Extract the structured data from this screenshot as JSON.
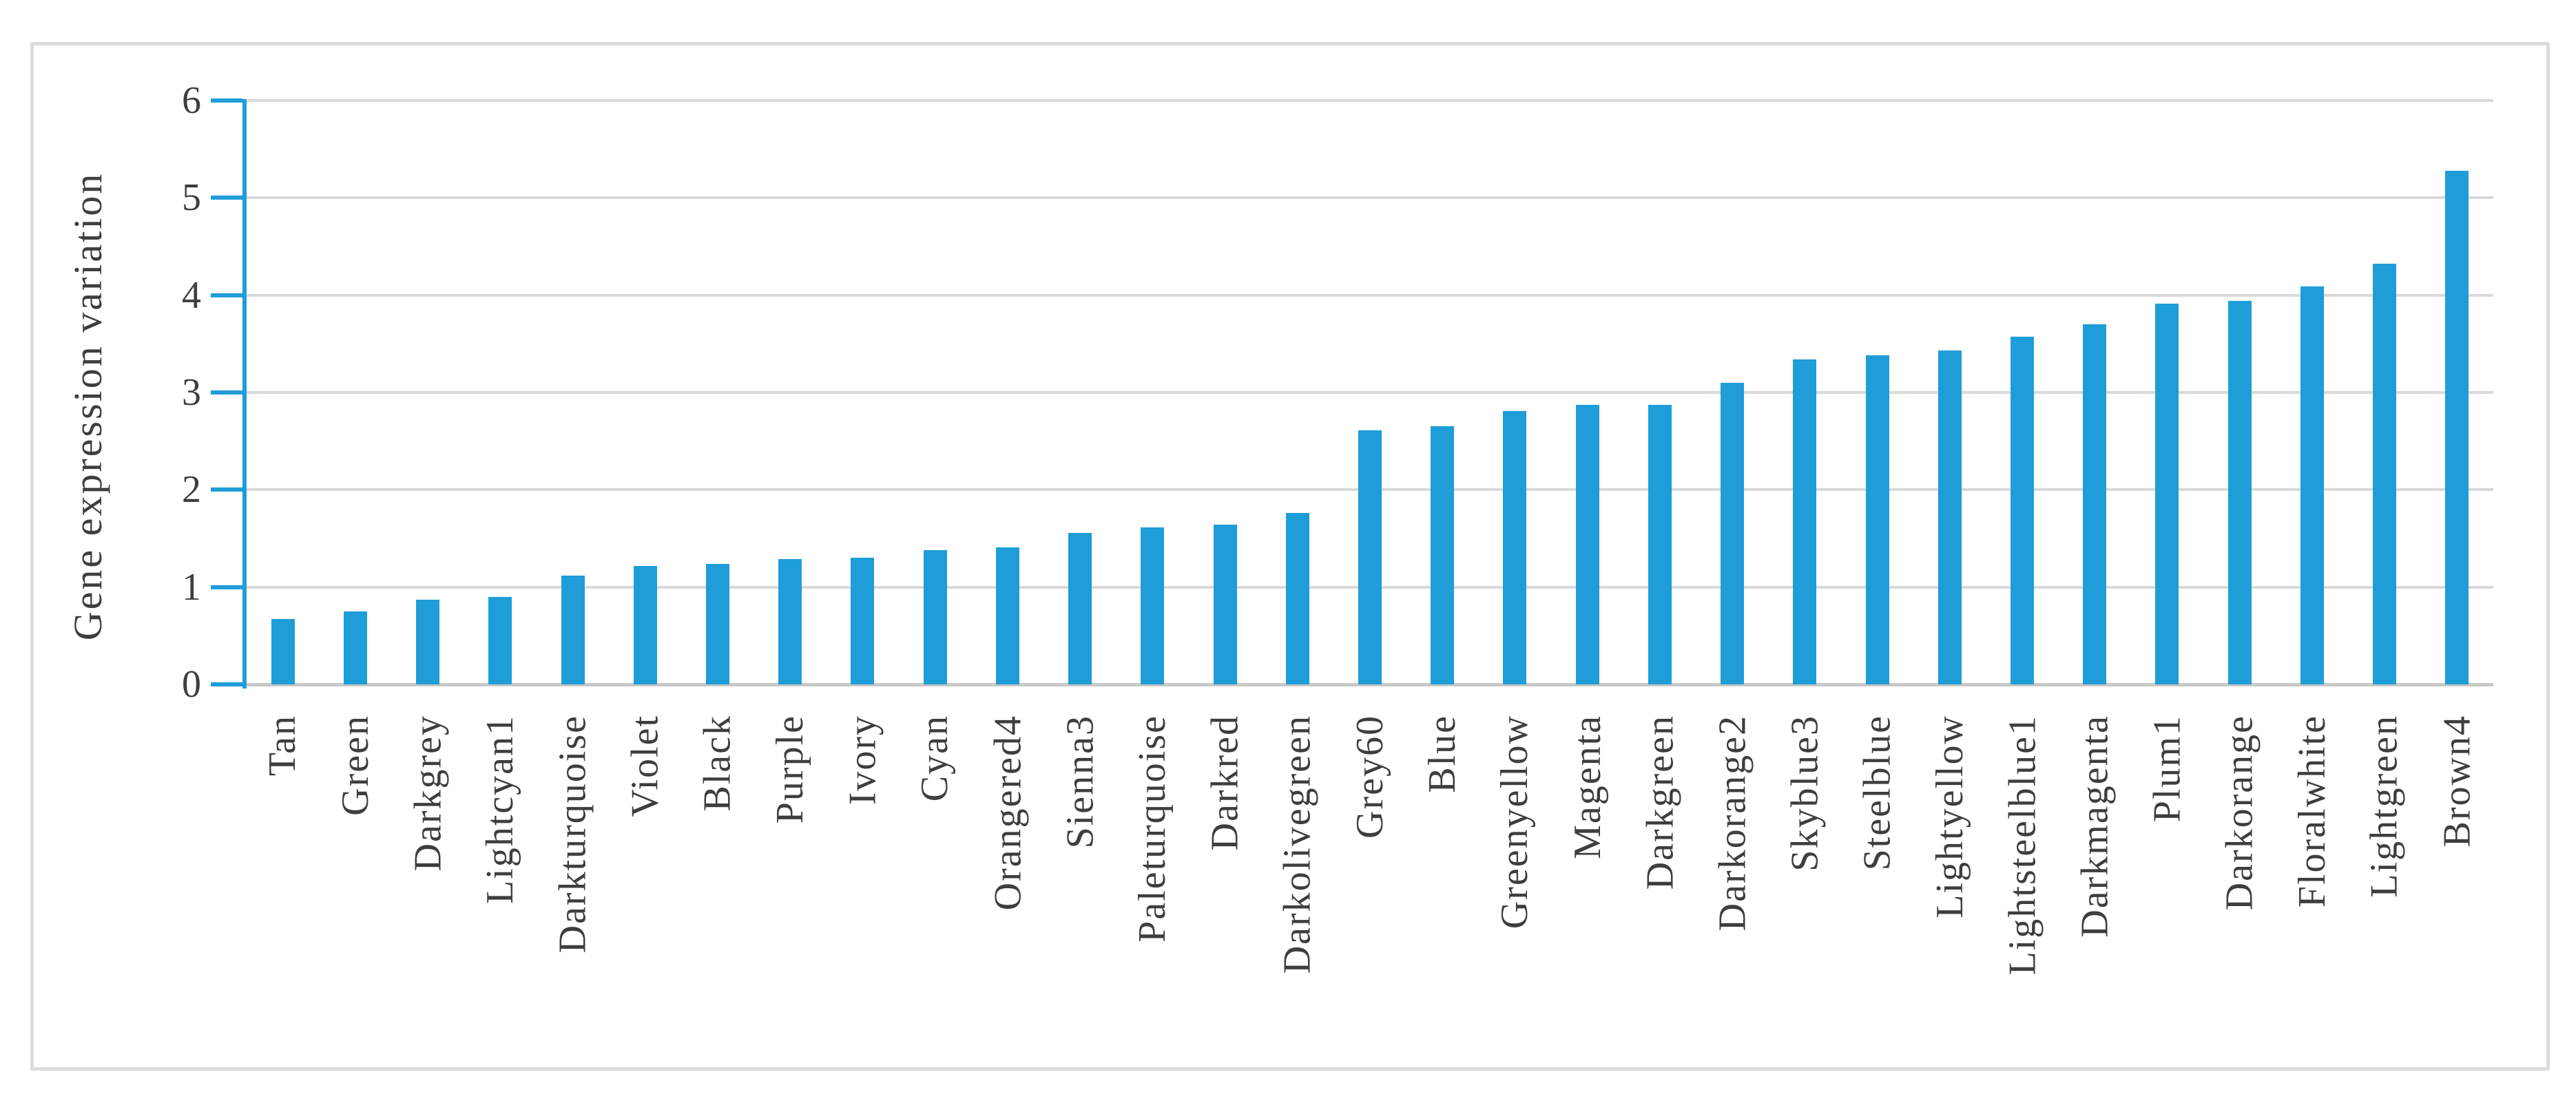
{
  "chart_data": {
    "type": "bar",
    "title": "",
    "xlabel": "",
    "ylabel": "Gene expression variation",
    "ylim": [
      0,
      6
    ],
    "yticks": [
      0,
      1,
      2,
      3,
      4,
      5,
      6
    ],
    "grid": "horizontal",
    "legend": "none",
    "categories": [
      "Tan",
      "Green",
      "Darkgrey",
      "Lightcyan1",
      "Darkturquoise",
      "Violet",
      "Black",
      "Purple",
      "Ivory",
      "Cyan",
      "Orangered4",
      "Sienna3",
      "Paleturquoise",
      "Darkred",
      "Darkolivegreen",
      "Grey60",
      "Blue",
      "Greenyellow",
      "Magenta",
      "Darkgreen",
      "Darkorange2",
      "Skyblue3",
      "Steelblue",
      "Lightyellow",
      "Lightsteelblue1",
      "Darkmagenta",
      "Plum1",
      "Darkorange",
      "Floralwhite",
      "Lightgreen",
      "Brown4"
    ],
    "values": [
      0.67,
      0.75,
      0.87,
      0.9,
      1.12,
      1.22,
      1.24,
      1.29,
      1.3,
      1.38,
      1.41,
      1.56,
      1.61,
      1.64,
      1.76,
      2.61,
      2.65,
      2.81,
      2.87,
      2.87,
      3.1,
      3.34,
      3.38,
      3.43,
      3.57,
      3.7,
      3.91,
      3.94,
      4.09,
      4.32,
      5.28
    ],
    "colors": {
      "bar": "#1F9DD9",
      "axis": "#1F9DD9",
      "gridline": "#D9D9D9",
      "baseline": "#C8C8C8",
      "text": "#3E3E3E",
      "frame_border": "#DCDCDC"
    }
  }
}
